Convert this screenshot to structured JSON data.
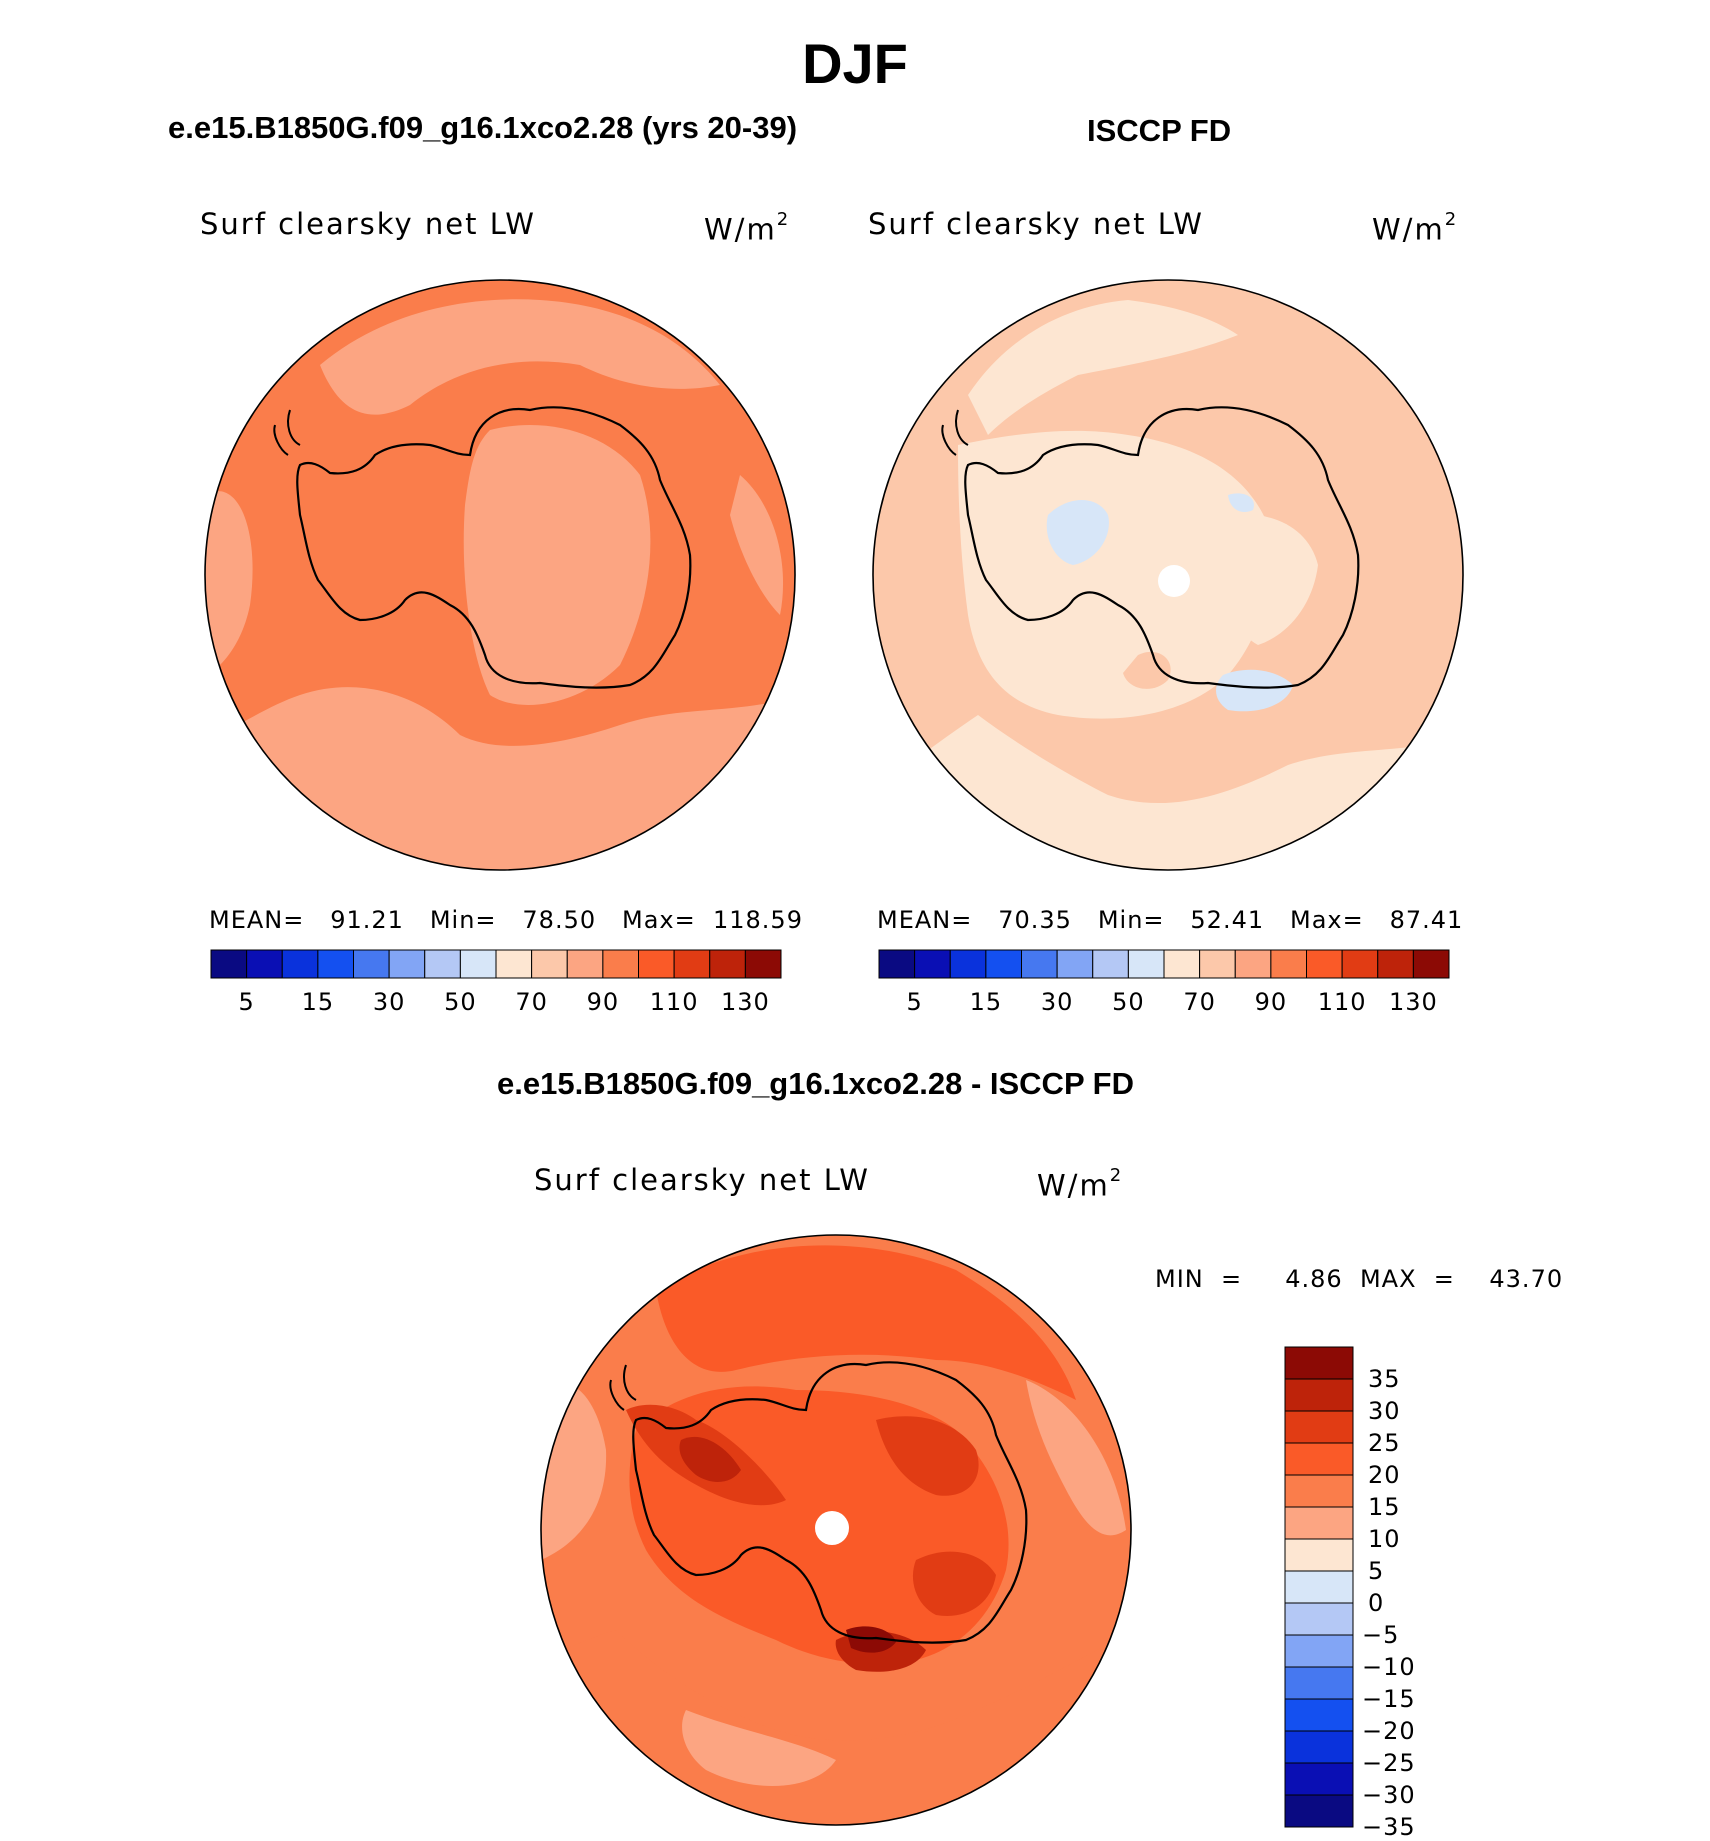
{
  "figure": {
    "title": "DJF",
    "colors": {
      "palette": [
        "#0a0a82",
        "#0a0fb4",
        "#0a32dc",
        "#1450f0",
        "#4678f0",
        "#82a5f5",
        "#b4c8f5",
        "#d7e6f8",
        "#fde6d2",
        "#fcc8aa",
        "#fca582",
        "#fa7d4b",
        "#fa5a28",
        "#e13c14",
        "#be230a",
        "#8c0a05"
      ],
      "coastline": "#000000"
    }
  },
  "panels": {
    "model": {
      "case_title": "e.e15.B1850G.f09_g16.1xco2.28 (yrs 20-39)",
      "label": "Surf clearsky net LW",
      "units_base": "W/m",
      "units_exp": "2",
      "stats": "MEAN=   91.21   Min=   78.50   Max=  118.59"
    },
    "obs": {
      "case_title": "ISCCP FD",
      "label": "Surf clearsky net LW",
      "units_base": "W/m",
      "units_exp": "2",
      "stats": "MEAN=   70.35   Min=   52.41   Max=   87.41"
    },
    "diff": {
      "case_title": "e.e15.B1850G.f09_g16.1xco2.28 - ISCCP FD",
      "label": "Surf clearsky net LW",
      "units_base": "W/m",
      "units_exp": "2",
      "stats": "MIN  =     4.86  MAX  =    43.70"
    }
  },
  "colorbar_top": {
    "ticks": [
      "5",
      "15",
      "30",
      "50",
      "70",
      "90",
      "110",
      "130"
    ]
  },
  "colorbar_diff": {
    "ticks": [
      "35",
      "30",
      "25",
      "20",
      "15",
      "10",
      "5",
      "0",
      "−5",
      "−10",
      "−15",
      "−20",
      "−25",
      "−30",
      "−35"
    ],
    "colors": [
      "#8c0a05",
      "#be230a",
      "#e13c14",
      "#fa5a28",
      "#fa7d4b",
      "#fca582",
      "#fde6d2",
      "#d7e6f8",
      "#b4c8f5",
      "#82a5f5",
      "#4678f0",
      "#1450f0",
      "#0a32dc",
      "#0a0fb4",
      "#0a0a82"
    ]
  }
}
